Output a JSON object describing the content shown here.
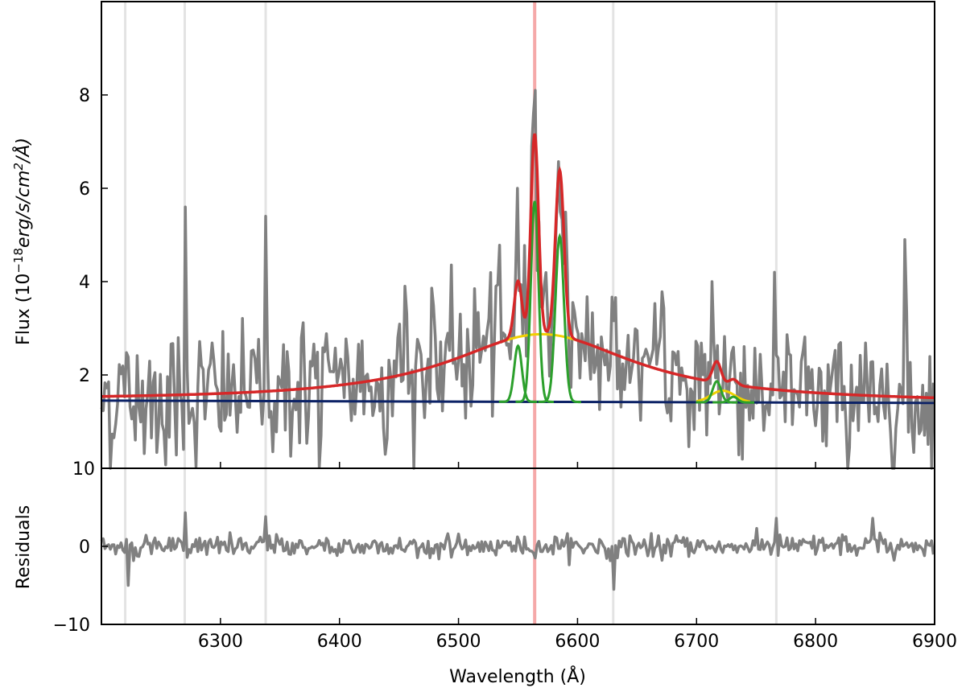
{
  "chart_data": [
    {
      "panel": "spectrum",
      "type": "line",
      "ylabel": "Flux (10^-18 erg/s/cm^2/Å)",
      "ylabel_parts": {
        "pre": "Flux (10",
        "exp1": "−18",
        "mid": "erg/s/cm",
        "exp2": "2",
        "post": "/Å)"
      },
      "xlim": [
        6200,
        6900
      ],
      "ylim": [
        0,
        10
      ],
      "yticks": [
        2,
        4,
        6,
        8
      ],
      "ytick_labels": [
        "2",
        "4",
        "6",
        "8"
      ],
      "ybottom_label": "10",
      "vertical_lines": [
        {
          "x": 6220,
          "color": "#e0e0e0"
        },
        {
          "x": 6270,
          "color": "#e0e0e0"
        },
        {
          "x": 6338,
          "color": "#e0e0e0"
        },
        {
          "x": 6564,
          "color": "#f4a0a0"
        },
        {
          "x": 6630,
          "color": "#e0e0e0"
        },
        {
          "x": 6767,
          "color": "#e0e0e0"
        }
      ],
      "series": [
        {
          "role": "data",
          "color": "#808080",
          "noise_sigma": 0.75,
          "spikes": [
            [
              6270,
              5.6
            ],
            [
              6338,
              5.4
            ],
            [
              6565,
              8.1
            ],
            [
              6550,
              6.0
            ],
            [
              6585,
              5.5
            ],
            [
              6455,
              3.9
            ],
            [
              6766,
              4.2
            ],
            [
              6875,
              4.9
            ],
            [
              6713,
              4.0
            ]
          ]
        },
        {
          "role": "continuum",
          "color": "#0c2266",
          "points": [
            [
              6200,
              1.45
            ],
            [
              6900,
              1.4
            ]
          ]
        },
        {
          "role": "broad component",
          "color": "#f0d000",
          "center": 6570,
          "fwhm": 190,
          "amplitude": 1.45
        },
        {
          "role": "narrow lines",
          "color": "#2ca02c",
          "lines": [
            {
              "center": 6550,
              "amplitude": 1.2,
              "sigma": 3.2
            },
            {
              "center": 6564,
              "amplitude": 4.3,
              "sigma": 3.2
            },
            {
              "center": 6585,
              "amplitude": 3.55,
              "sigma": 3.6
            },
            {
              "center": 6717,
              "amplitude": 0.45,
              "sigma": 3.5
            },
            {
              "center": 6731,
              "amplitude": 0.12,
              "sigma": 3.5
            }
          ]
        },
        {
          "role": "total model",
          "color": "#d62728"
        }
      ]
    },
    {
      "panel": "residuals",
      "type": "line",
      "xlabel": "Wavelength (Å)",
      "ylabel": "Residuals",
      "xlim": [
        6200,
        6900
      ],
      "ylim": [
        -10,
        10
      ],
      "xticks": [
        6300,
        6400,
        6500,
        6600,
        6700,
        6800,
        6900
      ],
      "xtick_labels": [
        "6300",
        "6400",
        "6500",
        "6600",
        "6700",
        "6800",
        "6900"
      ],
      "yticks": [
        0,
        -10
      ],
      "ytick_labels": [
        "0",
        "−10"
      ],
      "series": [
        {
          "role": "residuals",
          "color": "#808080",
          "noise_sigma": 0.7,
          "spikes": [
            [
              6222,
              -5.0
            ],
            [
              6270,
              4.3
            ],
            [
              6338,
              3.8
            ],
            [
              6630,
              -5.5
            ],
            [
              6767,
              3.6
            ],
            [
              6848,
              3.6
            ]
          ]
        }
      ]
    }
  ]
}
